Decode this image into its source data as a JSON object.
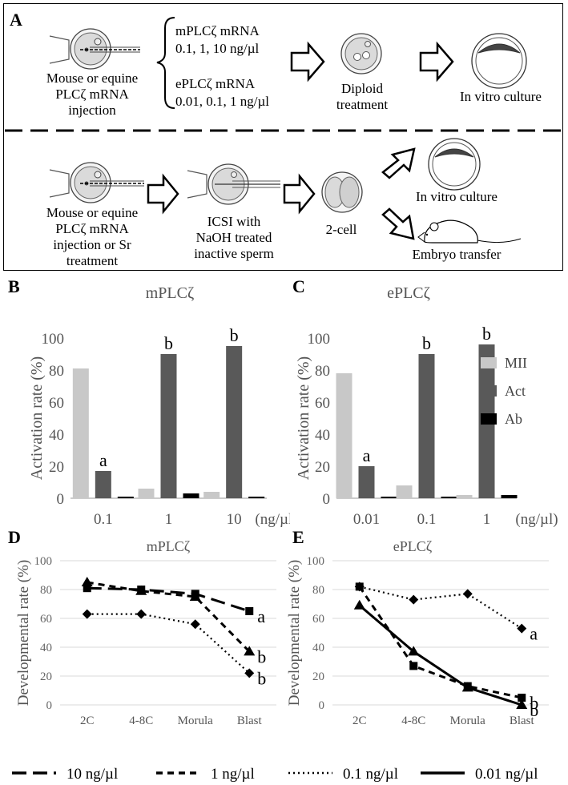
{
  "panel_a": {
    "label": "A",
    "top": {
      "injection_caption": [
        "Mouse or equine",
        "PLCζ mRNA",
        "injection"
      ],
      "mouse_mrna_title": "mPLCζ mRNA",
      "mouse_mrna_doses": "0.1, 1, 10 ng/µl",
      "equine_mrna_title": "ePLCζ mRNA",
      "equine_mrna_doses": "0.01, 0.1, 1 ng/µl",
      "diploid_caption": [
        "Diploid",
        "treatment"
      ],
      "culture_caption": "In vitro culture"
    },
    "bottom": {
      "injection_caption": [
        "Mouse or equine",
        "PLCζ mRNA",
        "injection or Sr",
        "treatment"
      ],
      "icsi_caption": [
        "ICSI with",
        "NaOH treated",
        "inactive sperm"
      ],
      "twocell_caption": "2-cell",
      "culture_caption": "In vitro culture",
      "transfer_caption": "Embryo transfer"
    }
  },
  "chart_data": [
    {
      "id": "B",
      "type": "bar",
      "title": "mPLCζ",
      "ylabel": "Activation rate (%)",
      "xlabel": "(ng/µl)",
      "ylim": [
        0,
        100
      ],
      "yticks": [
        0,
        20,
        40,
        60,
        80,
        100
      ],
      "categories": [
        "0.1",
        "1",
        "10"
      ],
      "series": [
        {
          "name": "MII",
          "color": "#c8c8c8",
          "values": [
            81,
            6,
            4
          ]
        },
        {
          "name": "Act",
          "color": "#595959",
          "values": [
            17,
            90,
            95
          ]
        },
        {
          "name": "Ab",
          "color": "#000000",
          "values": [
            1,
            3,
            1
          ]
        }
      ],
      "annotations": [
        {
          "category": "0.1",
          "series": "Act",
          "text": "a"
        },
        {
          "category": "1",
          "series": "Act",
          "text": "b"
        },
        {
          "category": "10",
          "series": "Act",
          "text": "b"
        }
      ]
    },
    {
      "id": "C",
      "type": "bar",
      "title": "ePLCζ",
      "ylabel": "Activation rate (%)",
      "xlabel": "(ng/µl)",
      "ylim": [
        0,
        100
      ],
      "yticks": [
        0,
        20,
        40,
        60,
        80,
        100
      ],
      "categories": [
        "0.01",
        "0.1",
        "1"
      ],
      "series": [
        {
          "name": "MII",
          "color": "#c8c8c8",
          "values": [
            78,
            8,
            2
          ]
        },
        {
          "name": "Act",
          "color": "#595959",
          "values": [
            20,
            90,
            96
          ]
        },
        {
          "name": "Ab",
          "color": "#000000",
          "values": [
            1,
            1,
            2
          ]
        }
      ],
      "annotations": [
        {
          "category": "0.01",
          "series": "Act",
          "text": "a"
        },
        {
          "category": "0.1",
          "series": "Act",
          "text": "b"
        },
        {
          "category": "1",
          "series": "Act",
          "text": "b"
        }
      ]
    },
    {
      "id": "D",
      "type": "line",
      "title": "mPLCζ",
      "ylabel": "Developmental rate (%)",
      "ylim": [
        0,
        100
      ],
      "yticks": [
        0,
        20,
        40,
        60,
        80,
        100
      ],
      "categories": [
        "2C",
        "4-8C",
        "Morula",
        "Blast"
      ],
      "series": [
        {
          "name": "10 ng/µl",
          "marker": "square",
          "dash": "long",
          "values": [
            81,
            80,
            77,
            65
          ],
          "end_label": "a"
        },
        {
          "name": "1 ng/µl",
          "marker": "triangle",
          "dash": "short",
          "values": [
            85,
            79,
            75,
            37
          ],
          "end_label": "b"
        },
        {
          "name": "0.1 ng/µl",
          "marker": "diamond",
          "dash": "dot",
          "values": [
            63,
            63,
            56,
            22
          ],
          "end_label": "b"
        }
      ]
    },
    {
      "id": "E",
      "type": "line",
      "title": "ePLCζ",
      "ylabel": "Developmental rate (%)",
      "ylim": [
        0,
        100
      ],
      "yticks": [
        0,
        20,
        40,
        60,
        80,
        100
      ],
      "categories": [
        "2C",
        "4-8C",
        "Morula",
        "Blast"
      ],
      "series": [
        {
          "name": "1 ng/µl",
          "marker": "square",
          "dash": "short",
          "values": [
            82,
            27,
            13,
            5
          ],
          "end_label": "b"
        },
        {
          "name": "0.1 ng/µl",
          "marker": "diamond",
          "dash": "dot",
          "values": [
            82,
            73,
            77,
            53
          ],
          "end_label": "a"
        },
        {
          "name": "0.01 ng/µl",
          "marker": "triangle",
          "dash": "solid",
          "values": [
            69,
            37,
            12,
            0
          ],
          "end_label": "b"
        }
      ]
    }
  ],
  "legend_lines": [
    {
      "label": "10 ng/µl",
      "dash": "long"
    },
    {
      "label": "1 ng/µl",
      "dash": "short"
    },
    {
      "label": "0.1 ng/µl",
      "dash": "dot"
    },
    {
      "label": "0.01 ng/µl",
      "dash": "solid"
    }
  ]
}
